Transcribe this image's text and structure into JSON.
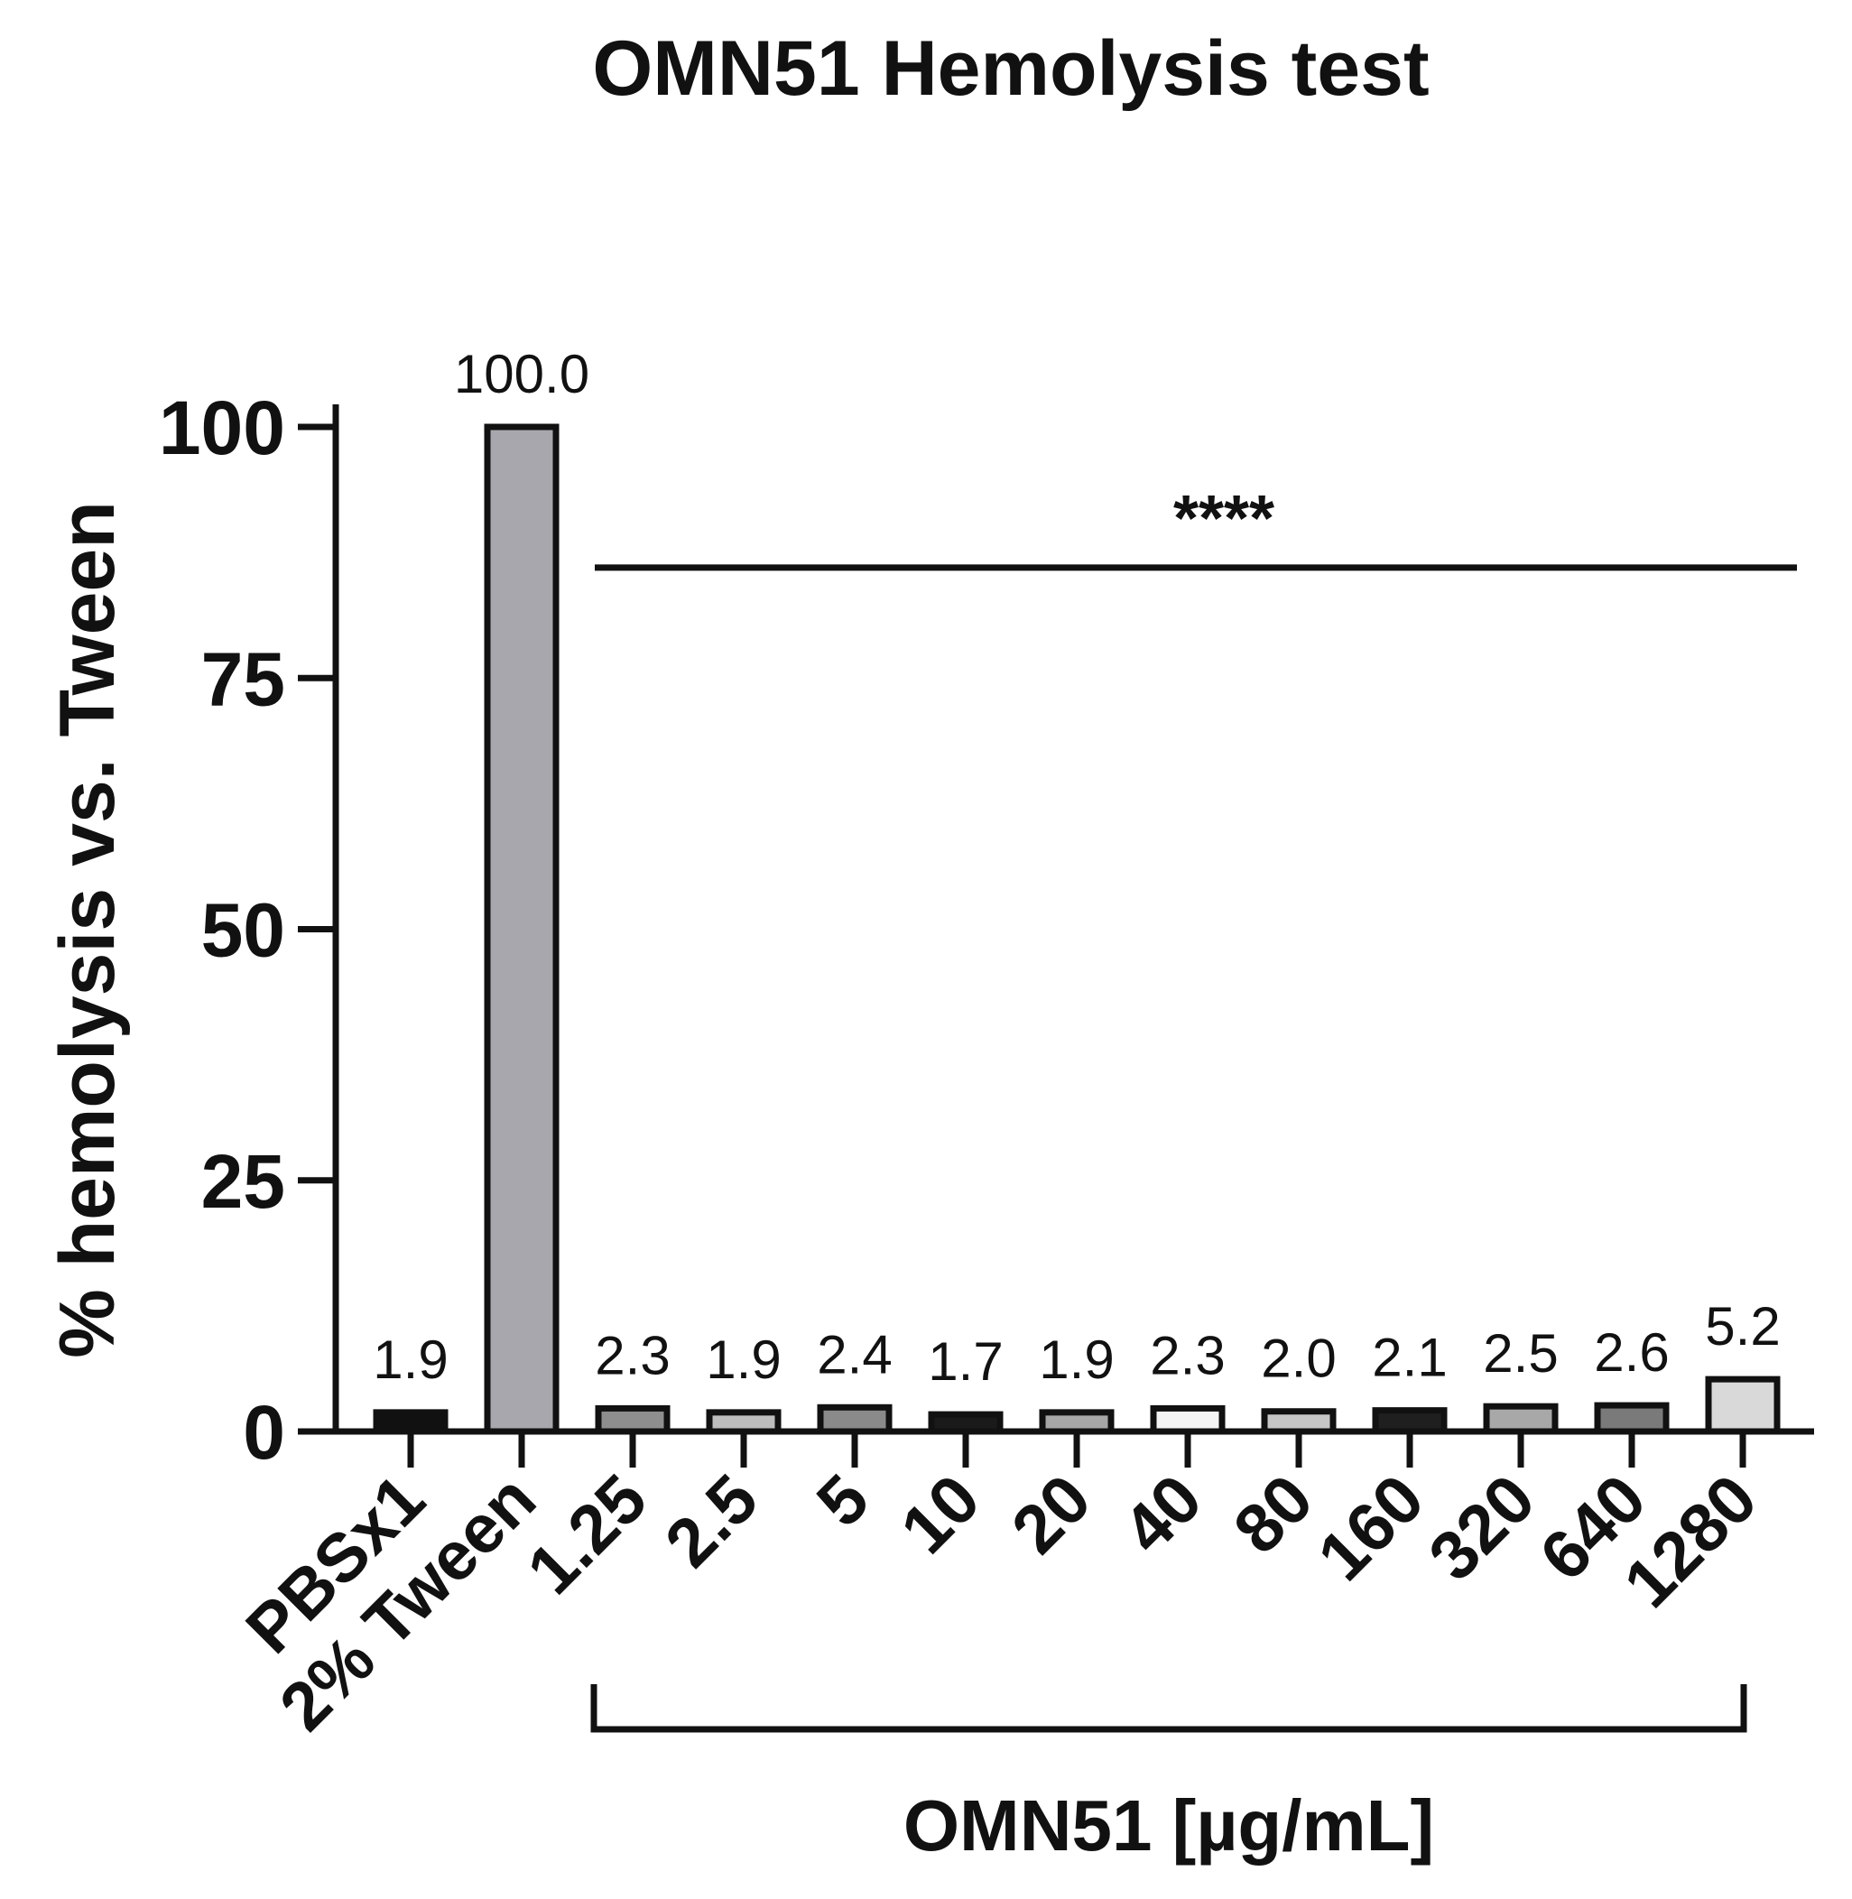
{
  "chart_data": {
    "type": "bar",
    "title": "OMN51 Hemolysis test",
    "ylabel": "% hemolysis vs. Tween",
    "xlabel": "",
    "ylim": [
      0,
      100
    ],
    "yticks": [
      "0",
      "25",
      "50",
      "75",
      "100"
    ],
    "categories": [
      "PBSx1",
      "2% Tween",
      "1.25",
      "2.5",
      "5",
      "10",
      "20",
      "40",
      "80",
      "160",
      "320",
      "640",
      "1280"
    ],
    "values": [
      1.9,
      100.0,
      2.3,
      1.9,
      2.4,
      1.7,
      1.9,
      2.3,
      2.0,
      2.1,
      2.5,
      2.6,
      5.2
    ],
    "value_labels": [
      "1.9",
      "100.0",
      "2.3",
      "1.9",
      "2.4",
      "1.7",
      "1.9",
      "2.3",
      "2.0",
      "2.1",
      "2.5",
      "2.6",
      "5.2"
    ],
    "bar_colors": [
      "#111111",
      "#a7a7ad",
      "#8e8e8e",
      "#bdbdbd",
      "#8a8a8a",
      "#1a1a1a",
      "#a6a6a6",
      "#f4f4f4",
      "#c6c6c6",
      "#1f1f1f",
      "#a8a8a8",
      "#7a7a7a",
      "#d9d9d9"
    ],
    "group_label": "OMN51 [µg/mL]",
    "group_range": [
      "1.25",
      "1280"
    ],
    "significance": {
      "label": "****",
      "y": 86,
      "from": "1.25",
      "to": "1280"
    },
    "grid": false,
    "legend": "none"
  }
}
